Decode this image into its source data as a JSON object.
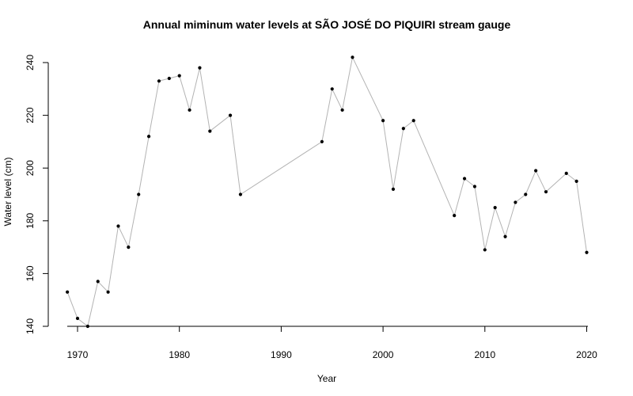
{
  "chart_data": {
    "type": "line",
    "title": "Annual miminum water levels at SÃO JOSÉ DO PIQUIRI stream gauge",
    "xlabel": "Year",
    "ylabel": "Water level (cm)",
    "xlim": [
      1968,
      2021
    ],
    "ylim": [
      135,
      244
    ],
    "x_ticks": [
      1970,
      1980,
      1990,
      2000,
      2010,
      2020
    ],
    "y_ticks": [
      140,
      160,
      180,
      200,
      220,
      240
    ],
    "grid": false,
    "line_color": "#b3b3b3",
    "point_color": "#000000",
    "x": [
      1969,
      1970,
      1971,
      1972,
      1973,
      1974,
      1975,
      1976,
      1977,
      1978,
      1979,
      1980,
      1981,
      1982,
      1983,
      1985,
      1986,
      1994,
      1995,
      1996,
      1997,
      2000,
      2001,
      2002,
      2003,
      2007,
      2008,
      2009,
      2010,
      2011,
      2012,
      2013,
      2014,
      2015,
      2016,
      2018,
      2019,
      2020
    ],
    "y": [
      153,
      143,
      140,
      157,
      153,
      178,
      170,
      190,
      212,
      233,
      234,
      235,
      222,
      238,
      214,
      220,
      190,
      210,
      230,
      222,
      242,
      218,
      192,
      215,
      218,
      182,
      196,
      193,
      169,
      185,
      174,
      187,
      190,
      199,
      191,
      198,
      195,
      168
    ]
  }
}
